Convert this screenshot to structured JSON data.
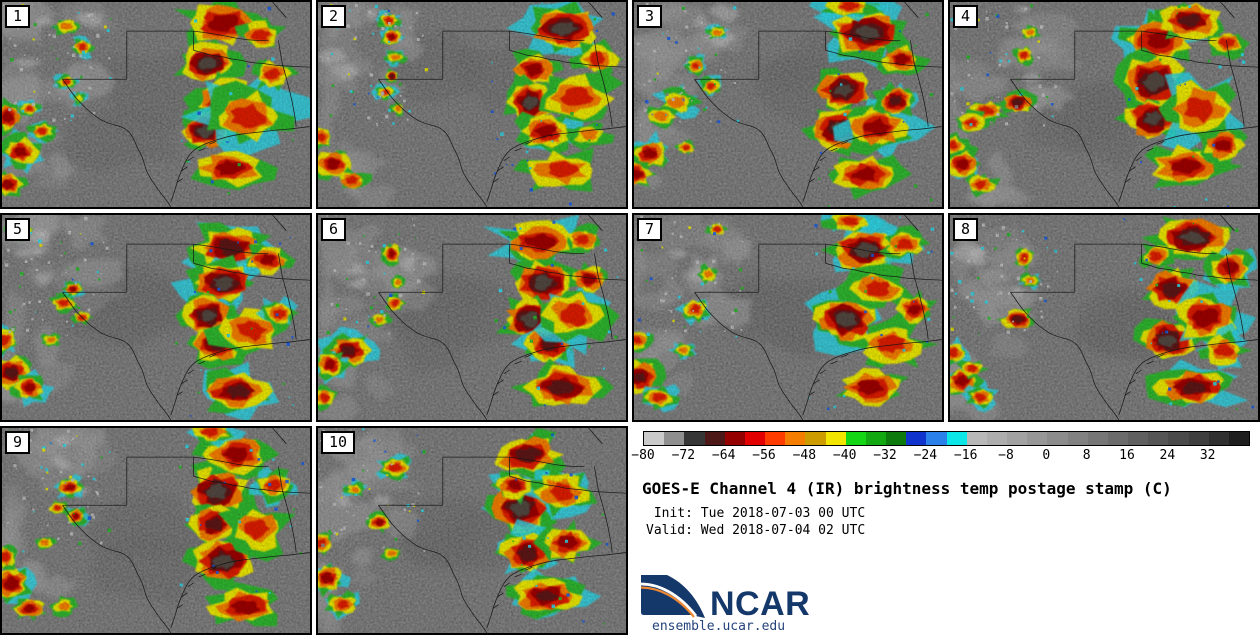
{
  "figure": {
    "title": "GOES-E Channel 4 (IR) brightness temp postage stamp (C)",
    "init_line": " Init: Tue 2018-07-03 00 UTC",
    "valid_line": "Valid: Wed 2018-07-04 02 UTC",
    "site": "ensemble.ucar.edu",
    "logo_text": "NCAR"
  },
  "colorbar": {
    "units": "C",
    "range_min": -80,
    "range_max": 40,
    "segment_step": 4,
    "tick_labels": [
      "−80",
      "−72",
      "−64",
      "−56",
      "−48",
      "−40",
      "−32",
      "−24",
      "−16",
      "−8",
      "0",
      "8",
      "16",
      "24",
      "32"
    ],
    "segment_colors": [
      "#cacaca",
      "#8f8f8f",
      "#363636",
      "#4c1818",
      "#950000",
      "#e30000",
      "#ff3c00",
      "#f57e00",
      "#cc9c00",
      "#f2e600",
      "#15d615",
      "#11a811",
      "#0c7a0c",
      "#1133cd",
      "#2b80ea",
      "#0ce6e6",
      "#b8b8b8",
      "#adadad",
      "#a2a2a2",
      "#979797",
      "#8c8c8c",
      "#818181",
      "#767676",
      "#6b6b6b",
      "#606060",
      "#555555",
      "#4a4a4a",
      "#3f3f3f",
      "#303030",
      "#1e1e1e"
    ]
  },
  "render": {
    "ground_gray": "#6d6d6d",
    "storm_layers": [
      "#2fb32f",
      "#e8e400",
      "#f17c00",
      "#da1a00",
      "#9c0400",
      "#5c1414",
      "#514741"
    ],
    "fringe": "#2fd2e2",
    "cloud_gray": "#9e9e9e",
    "border_line": "#151515"
  },
  "panels": [
    {
      "label": "1",
      "cells": [
        [
          72,
          10,
          13,
          11,
          5
        ],
        [
          84,
          16,
          7,
          7,
          4
        ],
        [
          67,
          30,
          9,
          10,
          7
        ],
        [
          73,
          47,
          10,
          10,
          6
        ],
        [
          66,
          63,
          8,
          9,
          7
        ],
        [
          80,
          56,
          13,
          13,
          4
        ],
        [
          74,
          81,
          12,
          10,
          5
        ],
        [
          88,
          35,
          6,
          7,
          4
        ],
        [
          2,
          56,
          5,
          7,
          5
        ],
        [
          6,
          73,
          6,
          7,
          5
        ],
        [
          2,
          89,
          5,
          6,
          5
        ],
        [
          13,
          63,
          4,
          4,
          4
        ],
        [
          21,
          12,
          4,
          4,
          3
        ],
        [
          26,
          22,
          3,
          4,
          4
        ],
        [
          21,
          39,
          3,
          3,
          4
        ],
        [
          25,
          47,
          2,
          3,
          2
        ],
        [
          9,
          52,
          3,
          3,
          4
        ]
      ]
    },
    {
      "label": "2",
      "cells": [
        [
          80,
          13,
          12,
          10,
          7
        ],
        [
          70,
          33,
          8,
          8,
          5
        ],
        [
          69,
          49,
          7,
          10,
          7
        ],
        [
          74,
          63,
          9,
          9,
          5
        ],
        [
          84,
          47,
          12,
          12,
          4
        ],
        [
          79,
          82,
          12,
          10,
          4
        ],
        [
          91,
          28,
          7,
          8,
          4
        ],
        [
          88,
          65,
          6,
          6,
          3
        ],
        [
          23,
          9,
          3,
          4,
          4
        ],
        [
          24,
          17,
          3,
          4,
          5
        ],
        [
          25,
          27,
          3,
          3,
          3
        ],
        [
          24,
          36,
          2,
          3,
          6
        ],
        [
          22,
          44,
          3,
          3,
          4
        ],
        [
          26,
          52,
          2,
          3,
          3
        ],
        [
          5,
          79,
          6,
          7,
          5
        ],
        [
          11,
          87,
          5,
          5,
          4
        ],
        [
          1,
          66,
          4,
          5,
          4
        ]
      ]
    },
    {
      "label": "3",
      "cells": [
        [
          76,
          15,
          12,
          11,
          7
        ],
        [
          68,
          43,
          9,
          10,
          7
        ],
        [
          67,
          62,
          10,
          10,
          7
        ],
        [
          79,
          61,
          11,
          11,
          5
        ],
        [
          75,
          84,
          11,
          9,
          5
        ],
        [
          87,
          28,
          7,
          7,
          5
        ],
        [
          85,
          48,
          6,
          7,
          6
        ],
        [
          70,
          2,
          8,
          5,
          4
        ],
        [
          14,
          49,
          6,
          6,
          3
        ],
        [
          9,
          56,
          5,
          5,
          3
        ],
        [
          20,
          31,
          3,
          4,
          4
        ],
        [
          25,
          41,
          3,
          4,
          4
        ],
        [
          5,
          74,
          6,
          7,
          5
        ],
        [
          1,
          84,
          5,
          6,
          5
        ],
        [
          17,
          71,
          3,
          3,
          4
        ],
        [
          27,
          15,
          3,
          3,
          3
        ]
      ]
    },
    {
      "label": "4",
      "cells": [
        [
          68,
          18,
          12,
          11,
          5
        ],
        [
          66,
          39,
          10,
          13,
          7
        ],
        [
          66,
          57,
          9,
          10,
          7
        ],
        [
          78,
          9,
          10,
          9,
          6
        ],
        [
          81,
          52,
          12,
          14,
          4
        ],
        [
          77,
          80,
          13,
          10,
          5
        ],
        [
          89,
          70,
          7,
          8,
          5
        ],
        [
          90,
          20,
          6,
          6,
          4
        ],
        [
          22,
          49,
          5,
          5,
          6
        ],
        [
          12,
          53,
          6,
          5,
          4
        ],
        [
          7,
          59,
          5,
          5,
          4
        ],
        [
          4,
          79,
          6,
          7,
          5
        ],
        [
          10,
          89,
          5,
          5,
          4
        ],
        [
          24,
          26,
          3,
          4,
          4
        ],
        [
          26,
          15,
          3,
          3,
          3
        ],
        [
          1,
          70,
          4,
          5,
          4
        ]
      ]
    },
    {
      "label": "5",
      "cells": [
        [
          74,
          16,
          12,
          11,
          6
        ],
        [
          72,
          33,
          10,
          10,
          7
        ],
        [
          67,
          49,
          8,
          10,
          7
        ],
        [
          70,
          63,
          9,
          9,
          6
        ],
        [
          81,
          56,
          11,
          12,
          4
        ],
        [
          76,
          86,
          11,
          9,
          6
        ],
        [
          86,
          22,
          7,
          7,
          5
        ],
        [
          90,
          48,
          5,
          6,
          4
        ],
        [
          20,
          43,
          4,
          4,
          4
        ],
        [
          23,
          36,
          3,
          3,
          5
        ],
        [
          3,
          77,
          6,
          8,
          6
        ],
        [
          9,
          84,
          5,
          6,
          5
        ],
        [
          1,
          61,
          4,
          6,
          4
        ],
        [
          16,
          61,
          3,
          3,
          3
        ],
        [
          26,
          50,
          3,
          3,
          4
        ],
        [
          6,
          7,
          4,
          5,
          3
        ]
      ]
    },
    {
      "label": "6",
      "cells": [
        [
          72,
          13,
          12,
          10,
          5
        ],
        [
          73,
          33,
          10,
          10,
          7
        ],
        [
          69,
          51,
          9,
          11,
          7
        ],
        [
          75,
          63,
          8,
          9,
          6
        ],
        [
          83,
          49,
          11,
          12,
          4
        ],
        [
          79,
          84,
          12,
          10,
          6
        ],
        [
          88,
          31,
          6,
          7,
          5
        ],
        [
          86,
          12,
          6,
          6,
          4
        ],
        [
          10,
          66,
          7,
          7,
          6
        ],
        [
          4,
          73,
          5,
          6,
          5
        ],
        [
          24,
          19,
          3,
          5,
          5
        ],
        [
          25,
          43,
          3,
          4,
          4
        ],
        [
          20,
          51,
          3,
          3,
          3
        ],
        [
          2,
          89,
          4,
          5,
          4
        ],
        [
          26,
          33,
          2,
          3,
          3
        ]
      ]
    },
    {
      "label": "7",
      "cells": [
        [
          75,
          17,
          11,
          10,
          7
        ],
        [
          69,
          51,
          10,
          12,
          7
        ],
        [
          79,
          36,
          10,
          9,
          4
        ],
        [
          83,
          63,
          11,
          11,
          4
        ],
        [
          77,
          84,
          11,
          9,
          5
        ],
        [
          88,
          14,
          7,
          7,
          4
        ],
        [
          91,
          46,
          6,
          7,
          5
        ],
        [
          70,
          3,
          7,
          5,
          4
        ],
        [
          20,
          46,
          4,
          5,
          4
        ],
        [
          24,
          29,
          3,
          4,
          3
        ],
        [
          2,
          79,
          6,
          8,
          6
        ],
        [
          8,
          89,
          5,
          5,
          4
        ],
        [
          1,
          61,
          4,
          5,
          4
        ],
        [
          16,
          66,
          3,
          3,
          3
        ],
        [
          27,
          7,
          3,
          3,
          4
        ]
      ]
    },
    {
      "label": "8",
      "cells": [
        [
          79,
          11,
          12,
          10,
          7
        ],
        [
          72,
          36,
          9,
          10,
          6
        ],
        [
          71,
          61,
          9,
          10,
          7
        ],
        [
          83,
          50,
          11,
          12,
          5
        ],
        [
          79,
          84,
          12,
          9,
          6
        ],
        [
          91,
          26,
          7,
          8,
          5
        ],
        [
          89,
          66,
          7,
          8,
          4
        ],
        [
          67,
          20,
          5,
          6,
          4
        ],
        [
          22,
          51,
          5,
          5,
          6
        ],
        [
          4,
          81,
          6,
          7,
          5
        ],
        [
          10,
          89,
          4,
          5,
          4
        ],
        [
          1,
          67,
          4,
          5,
          4
        ],
        [
          24,
          21,
          3,
          5,
          4
        ],
        [
          26,
          32,
          3,
          3,
          3
        ],
        [
          7,
          75,
          4,
          4,
          4
        ]
      ]
    },
    {
      "label": "9",
      "cells": [
        [
          70,
          31,
          10,
          12,
          7
        ],
        [
          69,
          47,
          8,
          9,
          6
        ],
        [
          72,
          65,
          10,
          11,
          7
        ],
        [
          76,
          13,
          11,
          10,
          5
        ],
        [
          83,
          49,
          10,
          12,
          4
        ],
        [
          79,
          87,
          12,
          9,
          5
        ],
        [
          88,
          28,
          6,
          7,
          4
        ],
        [
          68,
          2,
          7,
          5,
          4
        ],
        [
          22,
          29,
          4,
          4,
          5
        ],
        [
          24,
          43,
          3,
          4,
          5
        ],
        [
          18,
          39,
          3,
          3,
          4
        ],
        [
          3,
          76,
          6,
          8,
          5
        ],
        [
          9,
          88,
          5,
          5,
          5
        ],
        [
          1,
          63,
          4,
          6,
          4
        ],
        [
          14,
          56,
          3,
          3,
          3
        ],
        [
          20,
          87,
          4,
          4,
          3
        ]
      ]
    },
    {
      "label": "10",
      "cells": [
        [
          68,
          13,
          11,
          10,
          6
        ],
        [
          66,
          39,
          10,
          12,
          7
        ],
        [
          68,
          61,
          9,
          10,
          6
        ],
        [
          74,
          82,
          11,
          9,
          6
        ],
        [
          79,
          31,
          10,
          10,
          4
        ],
        [
          81,
          56,
          8,
          9,
          5
        ],
        [
          64,
          28,
          6,
          7,
          5
        ],
        [
          25,
          19,
          5,
          5,
          4
        ],
        [
          20,
          46,
          4,
          4,
          5
        ],
        [
          3,
          73,
          5,
          7,
          5
        ],
        [
          8,
          86,
          5,
          5,
          4
        ],
        [
          1,
          56,
          4,
          5,
          4
        ],
        [
          24,
          61,
          3,
          3,
          3
        ],
        [
          12,
          30,
          3,
          3,
          3
        ]
      ]
    }
  ]
}
